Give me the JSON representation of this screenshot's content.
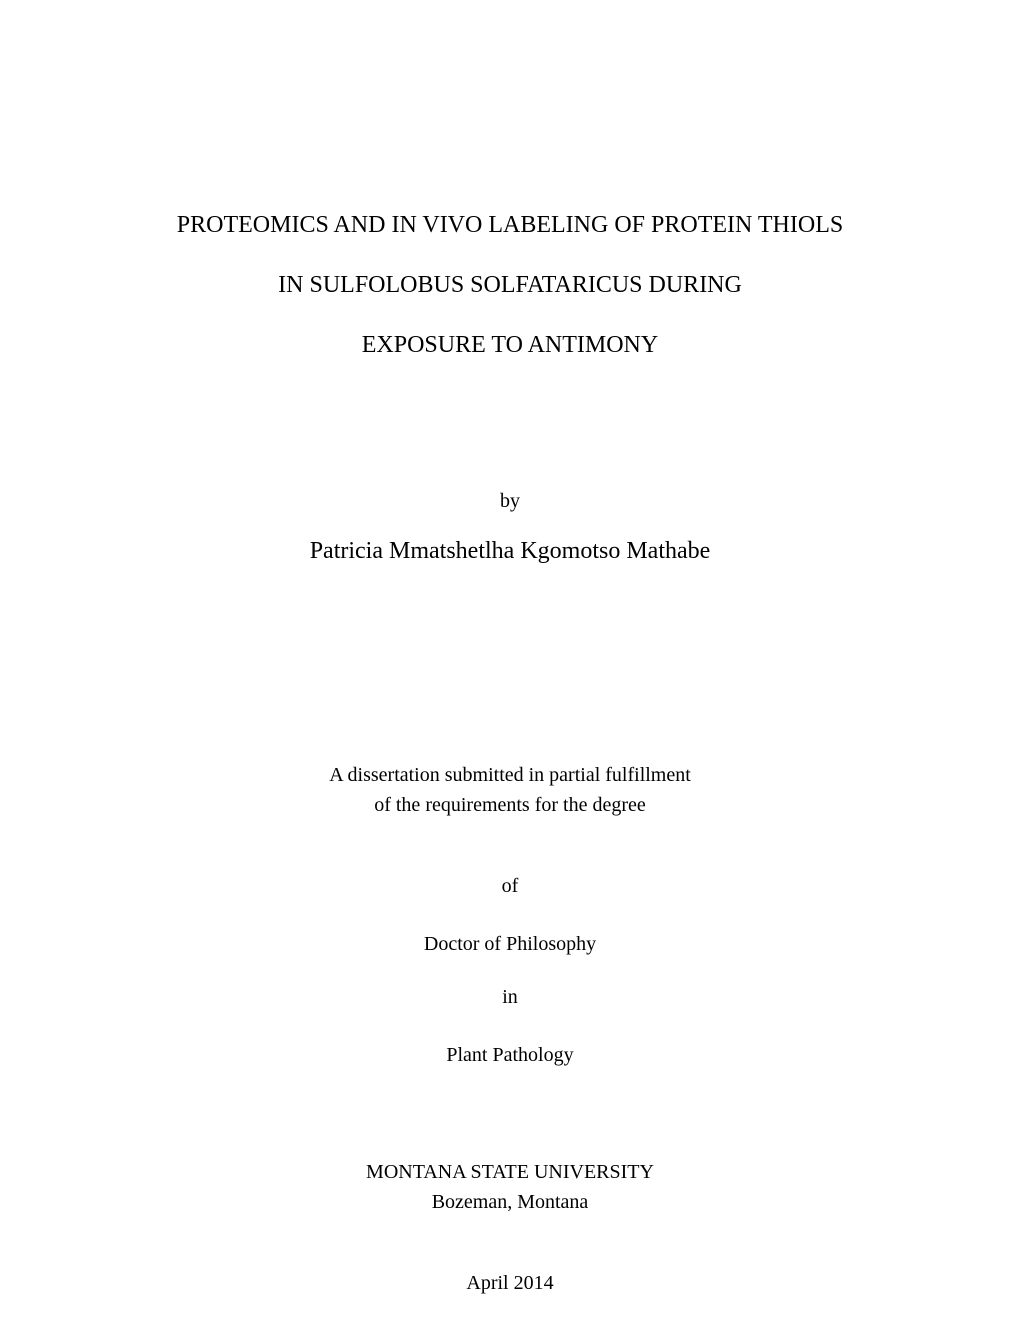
{
  "title": {
    "line1": "PROTEOMICS AND IN VIVO LABELING OF PROTEIN THIOLS",
    "line2": "IN SULFOLOBUS SOLFATARICUS DURING",
    "line3": "EXPOSURE TO ANTIMONY"
  },
  "by_label": "by",
  "author": "Patricia Mmatshetlha Kgomotso Mathabe",
  "submission": {
    "line1": "A dissertation submitted in partial fulfillment",
    "line2": "of the requirements for the degree"
  },
  "of_label": "of",
  "degree": "Doctor of Philosophy",
  "in_label": "in",
  "field": "Plant Pathology",
  "university": {
    "name": "MONTANA STATE UNIVERSITY",
    "location": "Bozeman, Montana"
  },
  "date": "April 2014",
  "styling": {
    "background_color": "#ffffff",
    "text_color": "#000000",
    "title_fontsize": 24,
    "body_fontsize": 20,
    "font_family": "Times New Roman"
  }
}
